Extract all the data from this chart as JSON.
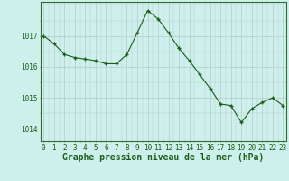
{
  "x": [
    0,
    1,
    2,
    3,
    4,
    5,
    6,
    7,
    8,
    9,
    10,
    11,
    12,
    13,
    14,
    15,
    16,
    17,
    18,
    19,
    20,
    21,
    22,
    23
  ],
  "y": [
    1017.0,
    1016.75,
    1016.4,
    1016.3,
    1016.25,
    1016.2,
    1016.1,
    1016.1,
    1016.4,
    1017.1,
    1017.82,
    1017.55,
    1017.1,
    1016.6,
    1016.2,
    1015.75,
    1015.3,
    1014.8,
    1014.75,
    1014.2,
    1014.65,
    1014.85,
    1015.0,
    1014.75
  ],
  "line_color": "#1a5c1a",
  "marker": "P",
  "marker_size": 2.5,
  "bg_color": "#cef0ec",
  "grid_color": "#b8c8c6",
  "xlabel": "Graphe pression niveau de la mer (hPa)",
  "xlabel_fontsize": 7,
  "ylabel_ticks": [
    1014,
    1015,
    1016,
    1017
  ],
  "xlim": [
    -0.3,
    23.3
  ],
  "ylim": [
    1013.6,
    1018.1
  ],
  "xtick_labels": [
    "0",
    "1",
    "2",
    "3",
    "4",
    "5",
    "6",
    "7",
    "8",
    "9",
    "10",
    "11",
    "12",
    "13",
    "14",
    "15",
    "16",
    "17",
    "18",
    "19",
    "20",
    "21",
    "22",
    "23"
  ],
  "tick_fontsize": 5.5,
  "spine_color": "#2d6e2d",
  "label_color": "#1a5c1a"
}
